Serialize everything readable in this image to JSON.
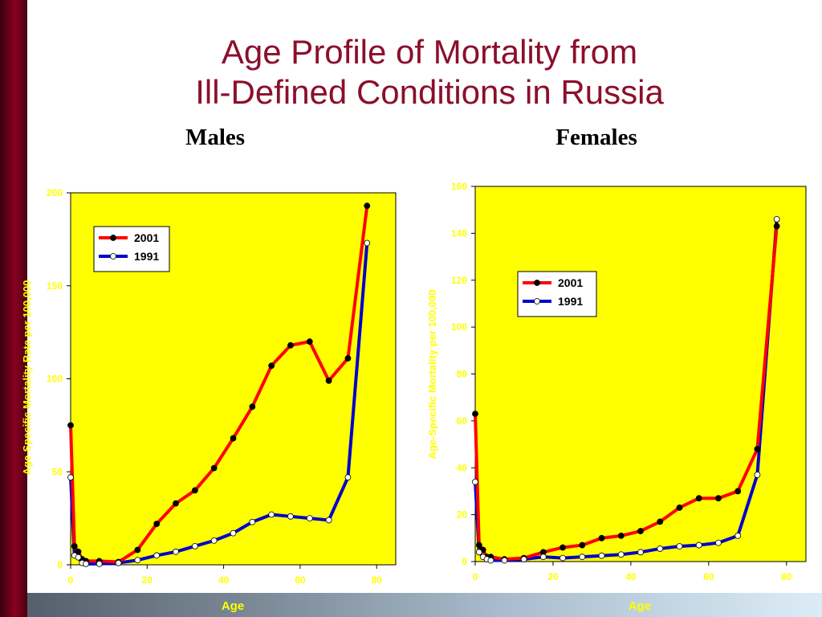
{
  "slide": {
    "title_line1": "Age Profile of Mortality from",
    "title_line2": "Ill-Defined Conditions in Russia",
    "accent_color": "#8b0f2c"
  },
  "chart_data": [
    {
      "type": "line",
      "panel_label": "Males",
      "xlabel": "Age",
      "ylabel": "Age-Specific Mortality Rate per 100,000",
      "xlim": [
        0,
        85
      ],
      "ylim": [
        0,
        200
      ],
      "x_ticks": [
        0,
        20,
        40,
        60,
        80
      ],
      "y_ticks": [
        0,
        50,
        100,
        150,
        200
      ],
      "legend_position": "top-left",
      "plot_background": "#ffff00",
      "series": [
        {
          "name": "2001",
          "color": "#ff0000",
          "marker": "filled-black",
          "x": [
            0,
            1,
            2,
            3,
            4,
            7.5,
            12.5,
            17.5,
            22.5,
            27.5,
            32.5,
            37.5,
            42.5,
            47.5,
            52.5,
            57.5,
            62.5,
            67.5,
            72.5,
            77.5
          ],
          "y": [
            75,
            10,
            7,
            3,
            2,
            2,
            1.5,
            8,
            22,
            33,
            40,
            52,
            68,
            85,
            107,
            118,
            120,
            99,
            111,
            193
          ]
        },
        {
          "name": "1991",
          "color": "#0000cc",
          "marker": "hollow-white",
          "x": [
            0,
            1,
            2,
            3,
            4,
            7.5,
            12.5,
            17.5,
            22.5,
            27.5,
            32.5,
            37.5,
            42.5,
            47.5,
            52.5,
            57.5,
            62.5,
            67.5,
            72.5,
            77.5
          ],
          "y": [
            47,
            5,
            4,
            1,
            0.5,
            0.5,
            1,
            2.5,
            5,
            7,
            10,
            13,
            17,
            23,
            27,
            26,
            25,
            24,
            47,
            173
          ]
        }
      ]
    },
    {
      "type": "line",
      "panel_label": "Females",
      "xlabel": "Age",
      "ylabel": "Age-Specific Mortality per 100,000",
      "xlim": [
        0,
        85
      ],
      "ylim": [
        0,
        160
      ],
      "x_ticks": [
        0,
        20,
        40,
        60,
        80
      ],
      "y_ticks": [
        0,
        20,
        40,
        60,
        80,
        100,
        120,
        140,
        160
      ],
      "legend_position": "middle-right",
      "plot_background": "#ffff00",
      "series": [
        {
          "name": "2001",
          "color": "#ff0000",
          "marker": "filled-black",
          "x": [
            0,
            1,
            2,
            3,
            4,
            7.5,
            12.5,
            17.5,
            22.5,
            27.5,
            32.5,
            37.5,
            42.5,
            47.5,
            52.5,
            57.5,
            62.5,
            67.5,
            72.5,
            77.5
          ],
          "y": [
            63,
            7,
            5,
            2,
            2,
            1,
            1.5,
            4,
            6,
            7,
            10,
            11,
            13,
            17,
            23,
            27,
            27,
            30,
            48,
            143
          ]
        },
        {
          "name": "1991",
          "color": "#0000cc",
          "marker": "hollow-white",
          "x": [
            0,
            1,
            2,
            3,
            4,
            7.5,
            12.5,
            17.5,
            22.5,
            27.5,
            32.5,
            37.5,
            42.5,
            47.5,
            52.5,
            57.5,
            62.5,
            67.5,
            72.5,
            77.5
          ],
          "y": [
            34,
            4,
            2,
            1,
            0.5,
            0.5,
            1,
            2,
            1.5,
            2,
            2.5,
            3,
            4,
            5.5,
            6.5,
            7,
            8,
            11,
            37,
            146
          ]
        }
      ]
    }
  ]
}
